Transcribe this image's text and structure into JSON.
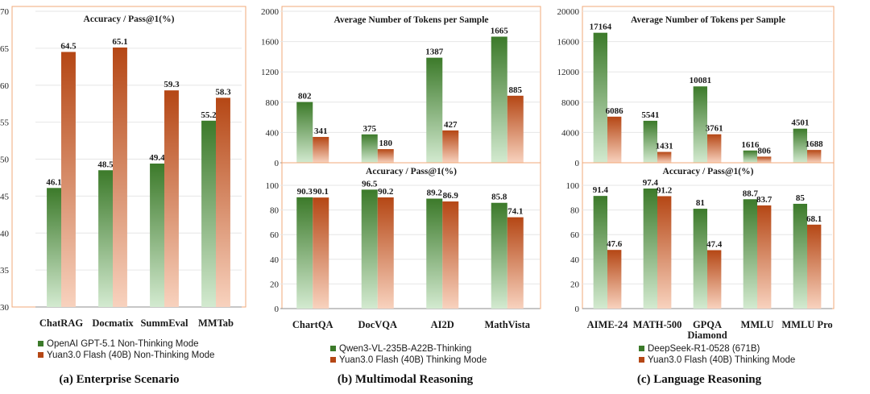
{
  "colors": {
    "green_top": "#3c7a2a",
    "green_bottom": "#d3ead0",
    "orange_top": "#b54715",
    "orange_bottom": "#f8d2be",
    "frame": "#f0a878"
  },
  "chart_data": [
    {
      "id": "a",
      "type": "bar",
      "title": "Accuracy / Pass@1(%)",
      "categories": [
        "ChatRAG",
        "Docmatix",
        "SummEval",
        "MMTab"
      ],
      "series": [
        {
          "name": "OpenAI GPT-5.1 Non-Thinking Mode",
          "color": "green",
          "values": [
            46.1,
            48.5,
            49.4,
            55.2
          ]
        },
        {
          "name": "Yuan3.0 Flash (40B) Non-Thinking Mode",
          "color": "orange",
          "values": [
            64.5,
            65.1,
            59.3,
            58.3
          ]
        }
      ],
      "ylim": [
        30,
        70
      ],
      "yticks": [
        30,
        35,
        40,
        45,
        50,
        55,
        60,
        65,
        70
      ],
      "caption": "(a) Enterprise Scenario"
    },
    {
      "id": "b-top",
      "type": "bar",
      "title": "Average Number of Tokens per Sample",
      "categories": [
        "ChartQA",
        "DocVQA",
        "AI2D",
        "MathVista"
      ],
      "series": [
        {
          "name": "Qwen3-VL-235B-A22B-Thinking",
          "color": "green",
          "values": [
            802,
            375,
            1387,
            1665
          ]
        },
        {
          "name": "Yuan3.0 Flash (40B) Thinking Mode",
          "color": "orange",
          "values": [
            341,
            180,
            427,
            885
          ]
        }
      ],
      "ylim": [
        0,
        2000
      ],
      "yticks": [
        0,
        400,
        800,
        1200,
        1600,
        2000
      ]
    },
    {
      "id": "b-bottom",
      "type": "bar",
      "title": "Accuracy / Pass@1(%)",
      "categories": [
        "ChartQA",
        "DocVQA",
        "AI2D",
        "MathVista"
      ],
      "series": [
        {
          "name": "Qwen3-VL-235B-A22B-Thinking",
          "color": "green",
          "values": [
            90.3,
            96.5,
            89.2,
            85.8
          ]
        },
        {
          "name": "Yuan3.0 Flash (40B) Thinking Mode",
          "color": "orange",
          "values": [
            90.1,
            90.2,
            86.9,
            74.1
          ]
        }
      ],
      "ylim": [
        0,
        100
      ],
      "yticks": [
        0,
        20,
        40,
        60,
        80,
        100
      ],
      "caption": "(b) Multimodal Reasoning"
    },
    {
      "id": "c-top",
      "type": "bar",
      "title": "Average Number of Tokens per Sample",
      "categories": [
        "AIME-24",
        "MATH-500",
        "GPQA Diamond",
        "MMLU",
        "MMLU Pro"
      ],
      "series": [
        {
          "name": "DeepSeek-R1-0528 (671B)",
          "color": "green",
          "values": [
            17164,
            5541,
            10081,
            1616,
            4501
          ]
        },
        {
          "name": "Yuan3.0 Flash (40B) Thinking Mode",
          "color": "orange",
          "values": [
            6086,
            1431,
            3761,
            806,
            1688
          ]
        }
      ],
      "ylim": [
        0,
        20000
      ],
      "yticks": [
        0,
        4000,
        8000,
        12000,
        16000,
        20000
      ]
    },
    {
      "id": "c-bottom",
      "type": "bar",
      "title": "Accuracy / Pass@1(%)",
      "categories": [
        "AIME-24",
        "MATH-500",
        "GPQA Diamond",
        "MMLU",
        "MMLU Pro"
      ],
      "series": [
        {
          "name": "DeepSeek-R1-0528 (671B)",
          "color": "green",
          "values": [
            91.4,
            97.4,
            81,
            88.7,
            85
          ]
        },
        {
          "name": "Yuan3.0 Flash (40B) Thinking Mode",
          "color": "orange",
          "values": [
            47.6,
            91.2,
            47.4,
            83.7,
            68.1
          ]
        }
      ],
      "ylim": [
        0,
        100
      ],
      "yticks": [
        0,
        20,
        40,
        60,
        80,
        100
      ],
      "caption": "(c) Language Reasoning"
    }
  ]
}
